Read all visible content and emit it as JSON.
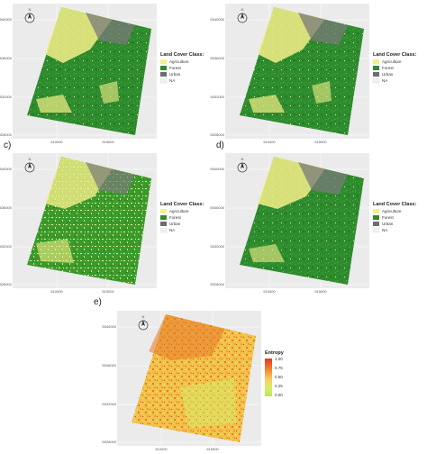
{
  "panel_labels": [
    "c)",
    "d)",
    "e)"
  ],
  "north_arrow_label": "N",
  "landcover_legend": {
    "title": "Land Cover Class:",
    "items": [
      {
        "label": "Agriculture",
        "color": "#f5ef88"
      },
      {
        "label": "Forest",
        "color": "#2e8b2e"
      },
      {
        "label": "Urban",
        "color": "#6e6e6e"
      },
      {
        "label": "NA",
        "color": "#f2f2f2"
      }
    ]
  },
  "entropy_legend": {
    "title": "Entropy",
    "ticks": [
      "1.00",
      "0.75",
      "0.50",
      "0.25",
      "0.00"
    ],
    "colors": [
      "#e03a1e",
      "#f08a32",
      "#f7d060",
      "#d6ef6a",
      "#b5e84e"
    ]
  },
  "axis": {
    "y_ticks": [
      "5540000",
      "5536000",
      "5532000",
      "5528000"
    ],
    "x_ticks": [
      "510000",
      "515000"
    ]
  },
  "colors": {
    "panel_bg": "#ebebeb",
    "grid": "#ffffff",
    "forest": "#2e8b2e",
    "agriculture": "#f5ef88",
    "urban": "#6e6e6e"
  }
}
